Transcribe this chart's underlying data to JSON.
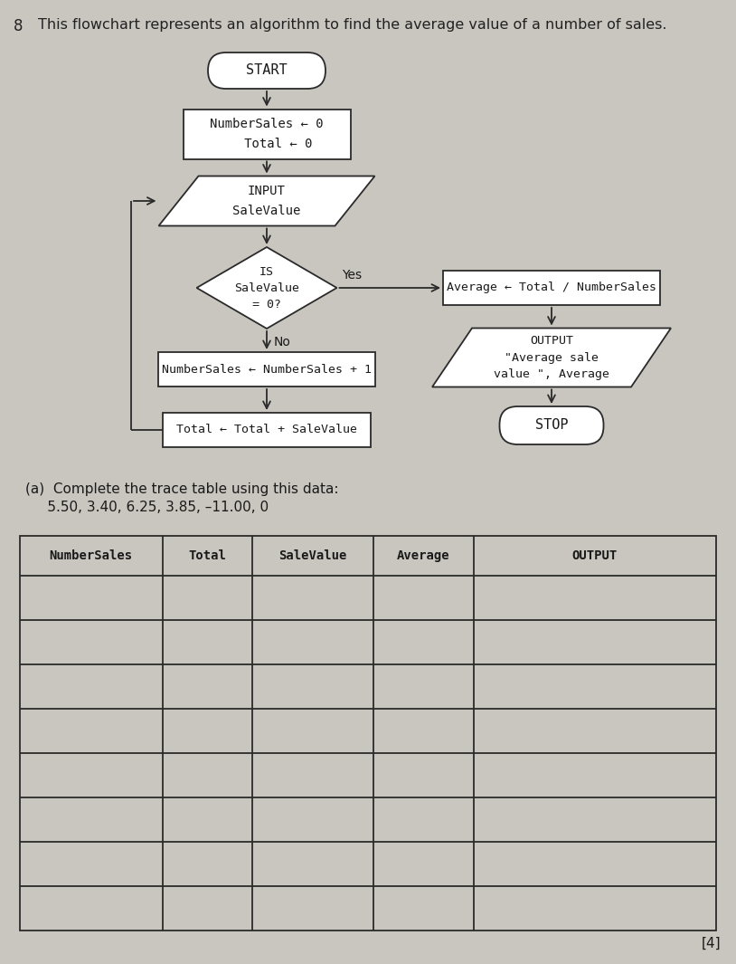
{
  "title_number": "8",
  "title_text": "This flowchart represents an algorithm to find the average value of a number of sales.",
  "background_color": "#c9c5bf",
  "flowchart": {
    "start_text": "START",
    "init_text": "NumberSales ← 0\n   Total ← 0",
    "input_text": "INPUT\nSaleValue",
    "decision_text": "IS\nSaleValue\n= 0?",
    "yes_label": "Yes",
    "no_label": "No",
    "assign_avg_text": "Average ← Total / NumberSales",
    "output_text": "OUTPUT\n\"Average sale\nvalue \", Average",
    "numbersales_text": "NumberSales ← NumberSales + 1",
    "total_text": "Total ← Total + SaleValue",
    "stop_text": "STOP"
  },
  "question_line1": "(a)  Complete the trace table using this data:",
  "question_line2": "     5.50, 3.40, 6.25, 3.85, –11.00, 0",
  "table_headers": [
    "NumberSales",
    "Total",
    "SaleValue",
    "Average",
    "OUTPUT"
  ],
  "table_num_rows": 8,
  "mark_text": "[4]",
  "font_mono": "DejaVu Sans Mono",
  "font_sans": "DejaVu Sans",
  "line_color": "#2a2a2a",
  "box_facecolor": "#ffffff",
  "text_color": "#1a1a1a",
  "title_color": "#222222"
}
